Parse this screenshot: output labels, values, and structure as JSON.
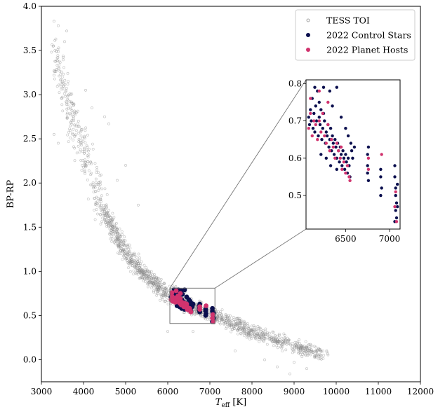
{
  "chart_data": {
    "type": "scatter",
    "title": "",
    "xlabel_main": "T",
    "xlabel_sub": "eff",
    "xlabel_unit": " [K]",
    "ylabel": "BP-RP",
    "xlim": [
      3000,
      12000
    ],
    "ylim": [
      -0.25,
      4.0
    ],
    "xticks": [
      3000,
      4000,
      5000,
      6000,
      7000,
      8000,
      9000,
      10000,
      11000,
      12000
    ],
    "yticks": [
      0.0,
      0.5,
      1.0,
      1.5,
      2.0,
      2.5,
      3.0,
      3.5,
      4.0
    ],
    "grid": false,
    "legend_position": "top-right",
    "series": [
      {
        "name": "TESS TOI",
        "marker": "open-circle",
        "color": "#8c8c8c",
        "sequence": [
          [
            3250,
            3.8
          ],
          [
            3300,
            3.55
          ],
          [
            3400,
            3.35
          ],
          [
            3500,
            3.1
          ],
          [
            3600,
            2.95
          ],
          [
            3700,
            2.8
          ],
          [
            3800,
            2.65
          ],
          [
            3900,
            2.5
          ],
          [
            4000,
            2.35
          ],
          [
            4100,
            2.2
          ],
          [
            4200,
            2.05
          ],
          [
            4300,
            1.92
          ],
          [
            4400,
            1.8
          ],
          [
            4500,
            1.68
          ],
          [
            4600,
            1.58
          ],
          [
            4700,
            1.48
          ],
          [
            4800,
            1.38
          ],
          [
            4900,
            1.3
          ],
          [
            5000,
            1.22
          ],
          [
            5100,
            1.15
          ],
          [
            5200,
            1.09
          ],
          [
            5300,
            1.03
          ],
          [
            5400,
            0.98
          ],
          [
            5500,
            0.94
          ],
          [
            5600,
            0.9
          ],
          [
            5700,
            0.86
          ],
          [
            5800,
            0.82
          ],
          [
            5900,
            0.78
          ],
          [
            6000,
            0.75
          ],
          [
            6100,
            0.72
          ],
          [
            6200,
            0.7
          ],
          [
            6300,
            0.67
          ],
          [
            6400,
            0.64
          ],
          [
            6500,
            0.62
          ],
          [
            6600,
            0.6
          ],
          [
            6700,
            0.58
          ],
          [
            6800,
            0.56
          ],
          [
            7000,
            0.52
          ],
          [
            7200,
            0.48
          ],
          [
            7400,
            0.44
          ],
          [
            7600,
            0.4
          ],
          [
            7800,
            0.36
          ],
          [
            8000,
            0.32
          ],
          [
            8300,
            0.27
          ],
          [
            8600,
            0.22
          ],
          [
            8900,
            0.18
          ],
          [
            9200,
            0.13
          ],
          [
            9500,
            0.08
          ],
          [
            9700,
            0.05
          ]
        ],
        "outliers": [
          [
            3300,
            3.83
          ],
          [
            3400,
            3.78
          ],
          [
            3600,
            3.72
          ],
          [
            3550,
            3.6
          ],
          [
            3300,
            3.22
          ],
          [
            3700,
            3.0
          ],
          [
            4050,
            3.05
          ],
          [
            4200,
            2.85
          ],
          [
            4500,
            2.75
          ],
          [
            4600,
            2.67
          ],
          [
            3300,
            2.55
          ],
          [
            3400,
            2.45
          ],
          [
            5000,
            2.2
          ],
          [
            4800,
            2.03
          ],
          [
            5300,
            1.75
          ],
          [
            6600,
            0.32
          ],
          [
            7600,
            0.1
          ],
          [
            8300,
            0.0
          ],
          [
            8600,
            -0.08
          ],
          [
            9000,
            -0.03
          ],
          [
            9300,
            -0.1
          ],
          [
            8900,
            -0.16
          ],
          [
            9700,
            0.05
          ],
          [
            6000,
            0.32
          ]
        ]
      },
      {
        "name": "2022 Control Stars",
        "marker": "filled-circle",
        "color": "#0b0f4e",
        "x_range": [
          6050,
          7100
        ],
        "y_range": [
          0.42,
          0.8
        ]
      },
      {
        "name": "2022 Planet Hosts",
        "marker": "filled-circle",
        "color": "#d1336e",
        "x_range": [
          6050,
          7100
        ],
        "y_range": [
          0.42,
          0.78
        ]
      }
    ],
    "inset": {
      "xlim": [
        6050,
        7120
      ],
      "ylim": [
        0.41,
        0.81
      ],
      "xticks": [
        6500,
        7000
      ],
      "yticks": [
        0.5,
        0.6,
        0.7,
        0.8
      ],
      "control_stars": [
        [
          6080,
          0.71
        ],
        [
          6090,
          0.69
        ],
        [
          6100,
          0.73
        ],
        [
          6110,
          0.7
        ],
        [
          6120,
          0.76
        ],
        [
          6130,
          0.68
        ],
        [
          6140,
          0.72
        ],
        [
          6150,
          0.67
        ],
        [
          6160,
          0.74
        ],
        [
          6170,
          0.7
        ],
        [
          6180,
          0.78
        ],
        [
          6190,
          0.66
        ],
        [
          6200,
          0.71
        ],
        [
          6210,
          0.69
        ],
        [
          6220,
          0.73
        ],
        [
          6230,
          0.65
        ],
        [
          6240,
          0.68
        ],
        [
          6250,
          0.72
        ],
        [
          6260,
          0.7
        ],
        [
          6270,
          0.64
        ],
        [
          6280,
          0.67
        ],
        [
          6290,
          0.66
        ],
        [
          6300,
          0.69
        ],
        [
          6310,
          0.63
        ],
        [
          6320,
          0.65
        ],
        [
          6330,
          0.68
        ],
        [
          6340,
          0.62
        ],
        [
          6350,
          0.66
        ],
        [
          6360,
          0.64
        ],
        [
          6370,
          0.61
        ],
        [
          6380,
          0.65
        ],
        [
          6390,
          0.63
        ],
        [
          6400,
          0.6
        ],
        [
          6410,
          0.64
        ],
        [
          6420,
          0.62
        ],
        [
          6430,
          0.59
        ],
        [
          6440,
          0.63
        ],
        [
          6450,
          0.61
        ],
        [
          6460,
          0.58
        ],
        [
          6470,
          0.62
        ],
        [
          6480,
          0.6
        ],
        [
          6490,
          0.57
        ],
        [
          6500,
          0.61
        ],
        [
          6510,
          0.59
        ],
        [
          6520,
          0.56
        ],
        [
          6530,
          0.6
        ],
        [
          6540,
          0.58
        ],
        [
          6550,
          0.55
        ],
        [
          6250,
          0.79
        ],
        [
          6320,
          0.78
        ],
        [
          6400,
          0.79
        ],
        [
          6150,
          0.79
        ],
        [
          6200,
          0.75
        ],
        [
          6350,
          0.74
        ],
        [
          6450,
          0.71
        ],
        [
          6500,
          0.68
        ],
        [
          6530,
          0.66
        ],
        [
          6560,
          0.64
        ],
        [
          6570,
          0.62
        ],
        [
          6580,
          0.6
        ],
        [
          6600,
          0.63
        ],
        [
          6220,
          0.61
        ],
        [
          6280,
          0.6
        ],
        [
          6330,
          0.58
        ],
        [
          6400,
          0.57
        ],
        [
          6750,
          0.61
        ],
        [
          6750,
          0.58
        ],
        [
          6750,
          0.56
        ],
        [
          6760,
          0.54
        ],
        [
          6760,
          0.63
        ],
        [
          6900,
          0.57
        ],
        [
          6900,
          0.55
        ],
        [
          6910,
          0.52
        ],
        [
          6900,
          0.5
        ],
        [
          7060,
          0.58
        ],
        [
          7060,
          0.55
        ],
        [
          7070,
          0.52
        ],
        [
          7070,
          0.5
        ],
        [
          7080,
          0.48
        ],
        [
          7070,
          0.46
        ],
        [
          7080,
          0.44
        ],
        [
          7060,
          0.43
        ],
        [
          7090,
          0.47
        ],
        [
          7090,
          0.53
        ]
      ],
      "planet_hosts": [
        [
          6080,
          0.68
        ],
        [
          6100,
          0.72
        ],
        [
          6120,
          0.66
        ],
        [
          6140,
          0.7
        ],
        [
          6160,
          0.69
        ],
        [
          6180,
          0.65
        ],
        [
          6200,
          0.7
        ],
        [
          6220,
          0.67
        ],
        [
          6240,
          0.72
        ],
        [
          6260,
          0.66
        ],
        [
          6280,
          0.64
        ],
        [
          6300,
          0.69
        ],
        [
          6320,
          0.62
        ],
        [
          6340,
          0.65
        ],
        [
          6360,
          0.63
        ],
        [
          6380,
          0.6
        ],
        [
          6400,
          0.64
        ],
        [
          6420,
          0.62
        ],
        [
          6440,
          0.6
        ],
        [
          6460,
          0.57
        ],
        [
          6480,
          0.59
        ],
        [
          6500,
          0.56
        ],
        [
          6520,
          0.58
        ],
        [
          6540,
          0.55
        ],
        [
          6300,
          0.75
        ],
        [
          6200,
          0.78
        ],
        [
          6100,
          0.76
        ],
        [
          6450,
          0.63
        ],
        [
          6550,
          0.54
        ],
        [
          6760,
          0.6
        ],
        [
          6760,
          0.57
        ],
        [
          6910,
          0.61
        ],
        [
          7060,
          0.47
        ],
        [
          7080,
          0.43
        ],
        [
          7070,
          0.51
        ]
      ]
    }
  }
}
